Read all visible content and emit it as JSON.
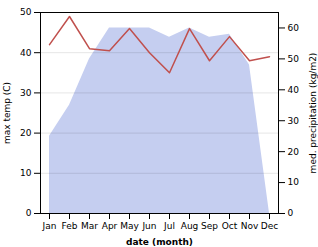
{
  "chart_data": {
    "type": "line",
    "xlabel": "date (month)",
    "ylabel": "max temp (C)",
    "y2label": "med. precipitation (kg/m2)",
    "categories": [
      "Jan",
      "Feb",
      "Mar",
      "Apr",
      "May",
      "Jun",
      "Jul",
      "Aug",
      "Sep",
      "Oct",
      "Nov",
      "Dec"
    ],
    "series": [
      {
        "type": "area",
        "axis": "y2",
        "color": "#c5cef0",
        "values": [
          25,
          35,
          50,
          60,
          60,
          60,
          57,
          60,
          57,
          58,
          48,
          0
        ]
      },
      {
        "type": "line",
        "color": "#c0504d",
        "values": [
          42,
          49,
          41,
          40.5,
          46,
          40,
          35,
          46,
          38,
          44,
          38,
          39
        ]
      }
    ],
    "ylim": [
      0,
      50
    ],
    "yticks": [
      0,
      10,
      20,
      30,
      40,
      50
    ],
    "y2lim": [
      0,
      65
    ],
    "y2ticks": [
      0,
      10,
      20,
      30,
      40,
      50,
      60
    ],
    "grid": true
  }
}
